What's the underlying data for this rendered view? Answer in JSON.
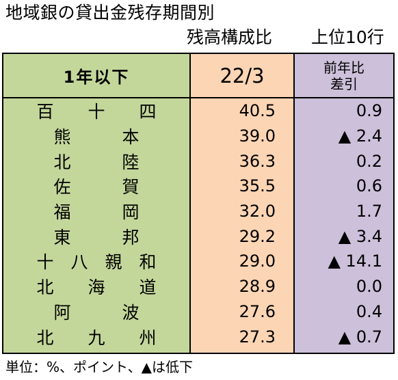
{
  "title": "地域銀の貸出金残存期間別",
  "subtitle": {
    "left": "残高構成比",
    "right": "上位10行"
  },
  "table": {
    "headers": {
      "name": "1年以下",
      "value": "22/3",
      "diff_line1": "前年比",
      "diff_line2": "差引"
    },
    "rows": [
      {
        "name": "百　　十　　四",
        "value": "40.5",
        "diff": "0.9"
      },
      {
        "name": "熊　　　本",
        "value": "39.0",
        "diff": "▲ 2.4"
      },
      {
        "name": "北　　　陸",
        "value": "36.3",
        "diff": "0.2"
      },
      {
        "name": "佐　　　賀",
        "value": "35.5",
        "diff": "0.6"
      },
      {
        "name": "福　　　岡",
        "value": "32.0",
        "diff": "1.7"
      },
      {
        "name": "東　　　邦",
        "value": "29.2",
        "diff": "▲ 3.4"
      },
      {
        "name": "十　八　親　和",
        "value": "29.0",
        "diff": "▲ 14.1"
      },
      {
        "name": "北　　海　　道",
        "value": "28.9",
        "diff": "0.0"
      },
      {
        "name": "阿　　　波",
        "value": "27.6",
        "diff": "0.4"
      },
      {
        "name": "北　　九　　州",
        "value": "27.3",
        "diff": "▲ 0.7"
      }
    ]
  },
  "note": "単位：%、ポイント、▲は低下",
  "colors": {
    "name_column": "#c4d79b",
    "value_column": "#fcd5b4",
    "diff_column": "#ccc0da"
  }
}
